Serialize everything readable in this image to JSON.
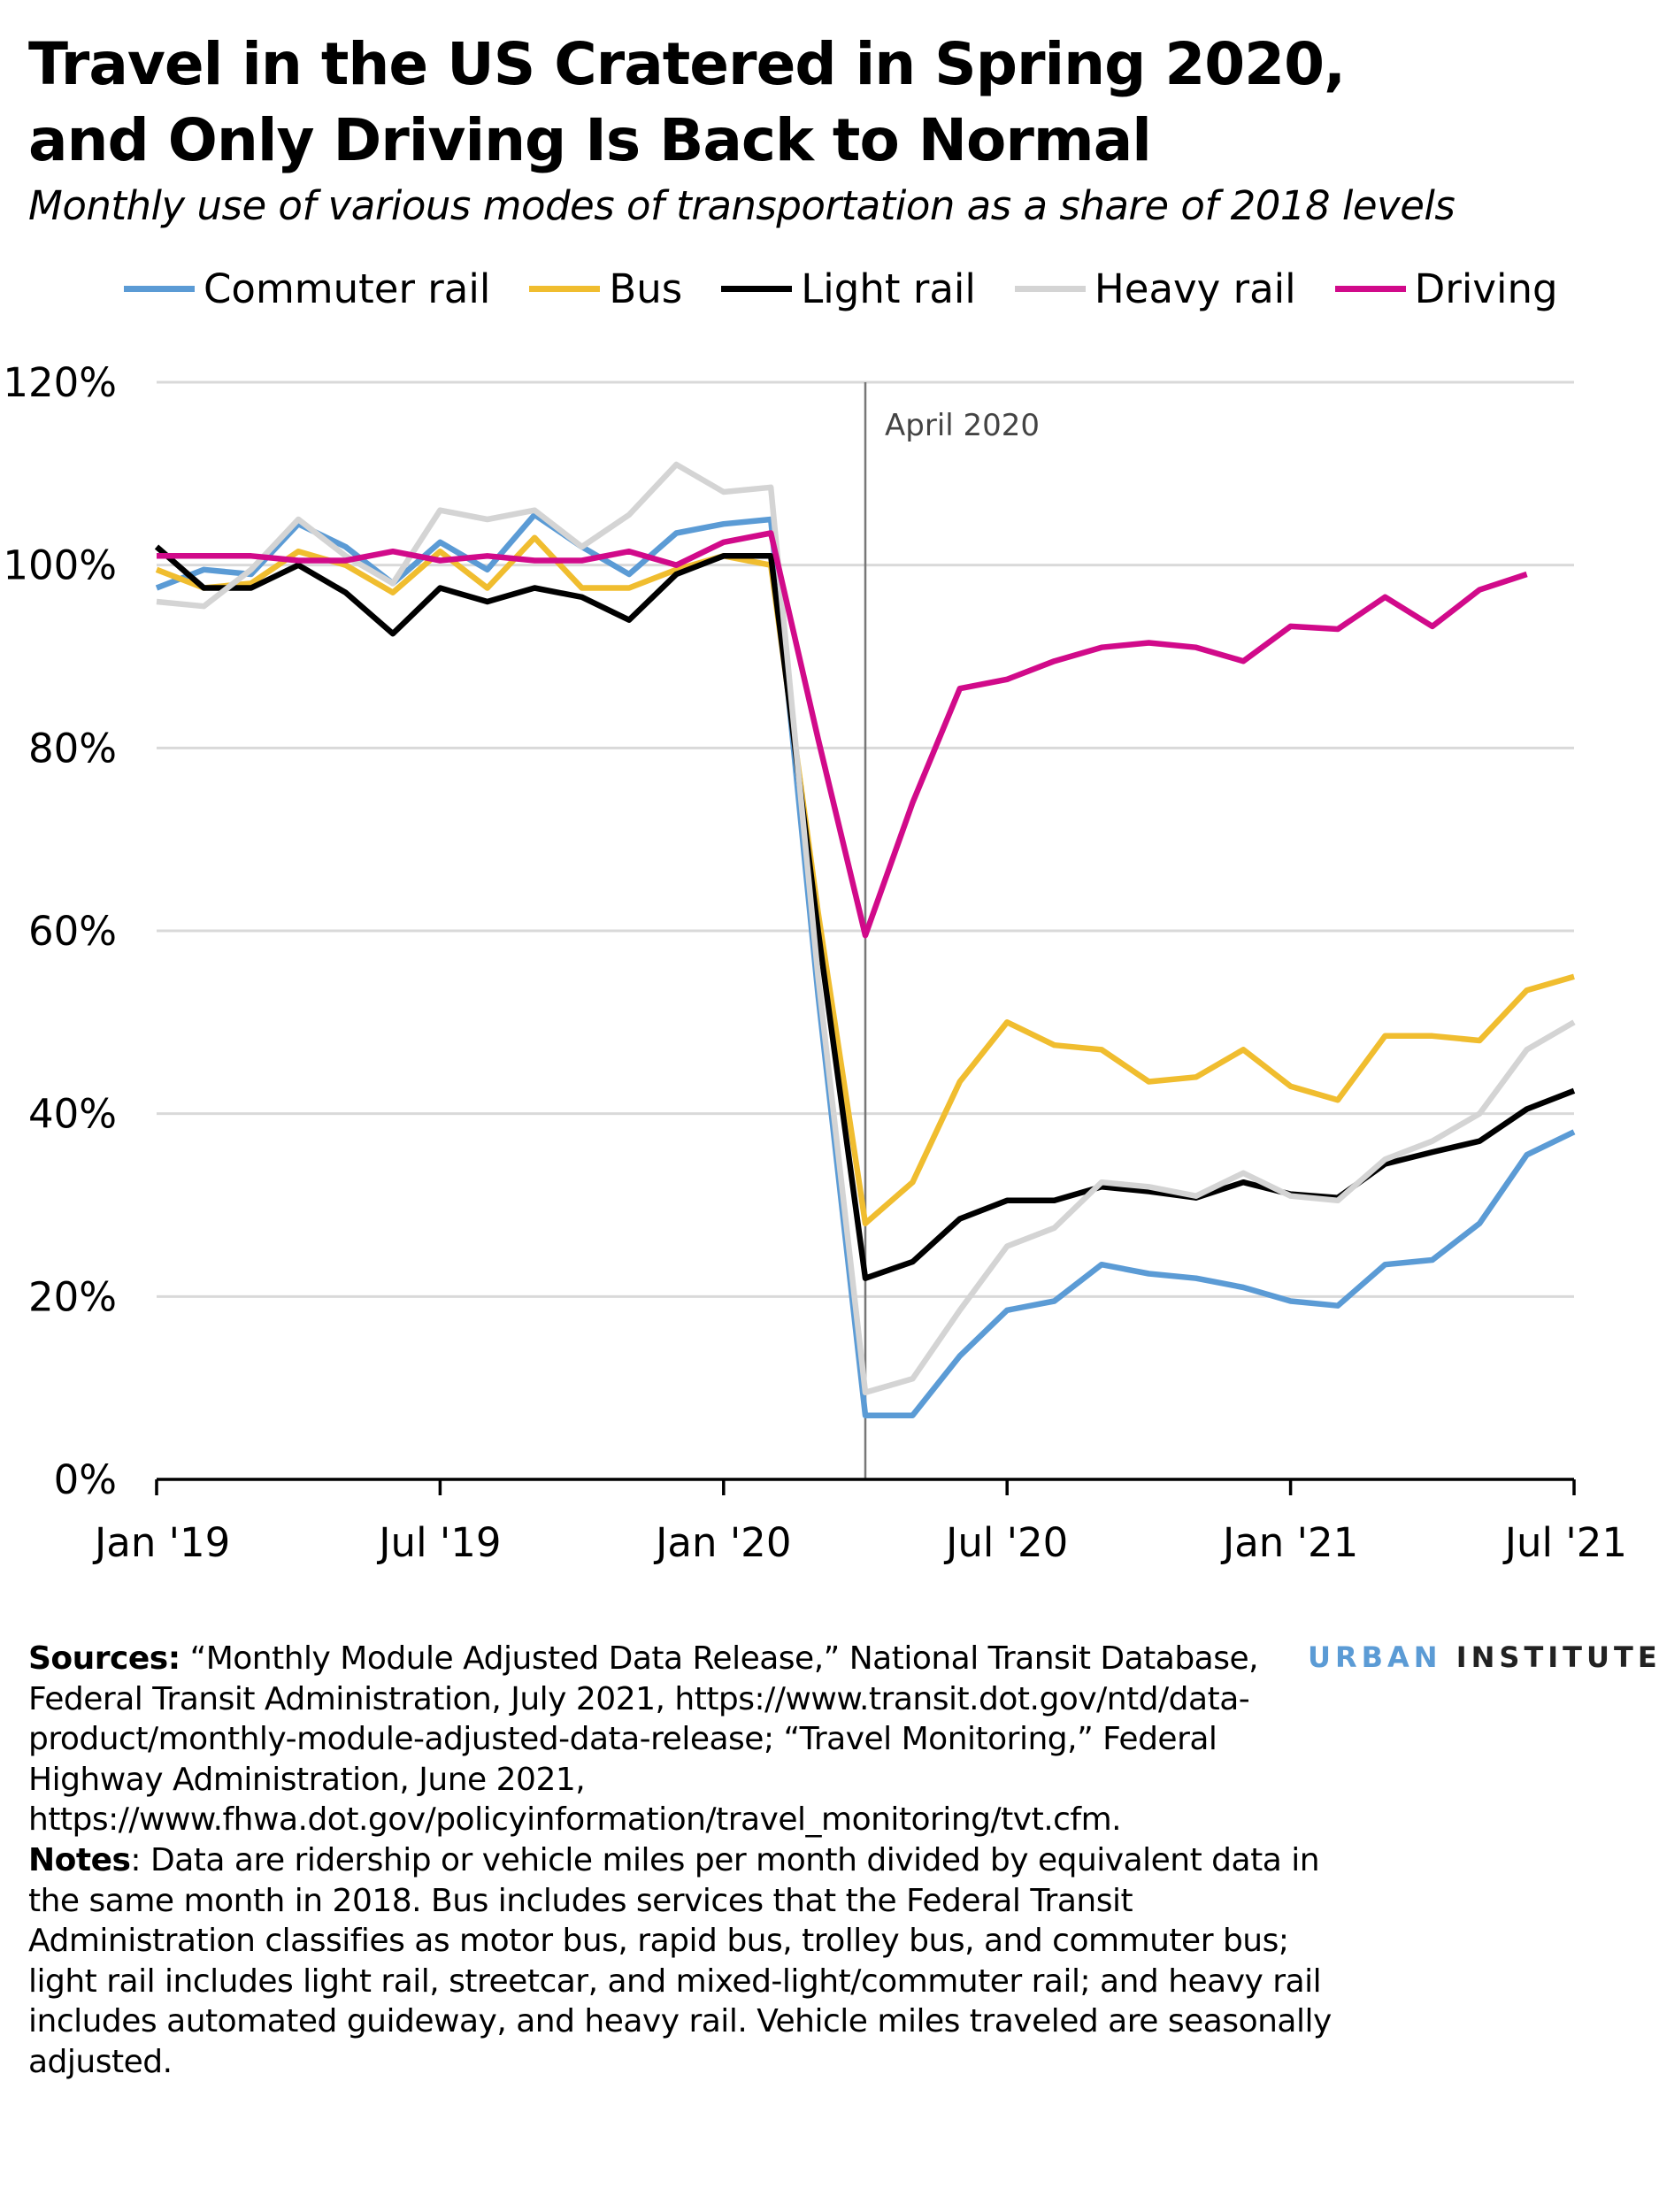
{
  "chart_data": {
    "type": "line",
    "title": "Travel in the US Cratered in Spring 2020, and Only Driving Is Back to Normal",
    "subtitle": "Monthly use of various modes of transportation as a share of 2018 levels",
    "categories": [
      "Jan '19",
      null,
      null,
      null,
      null,
      null,
      "Jul '19",
      null,
      null,
      null,
      null,
      null,
      "Jan '20",
      null,
      null,
      null,
      null,
      null,
      "Jul '20",
      null,
      null,
      null,
      null,
      null,
      "Jan '21",
      null,
      null,
      null,
      null,
      null,
      "Jul '21"
    ],
    "series": [
      {
        "name": "Commuter rail",
        "color": "#5b9bd5",
        "values": [
          97.5,
          99.5,
          99,
          104.5,
          102,
          98,
          102.5,
          99.5,
          105.5,
          102,
          99,
          103.5,
          104.5,
          105,
          53,
          7,
          7,
          13.5,
          18.5,
          19.5,
          23.5,
          22.5,
          22,
          21,
          19.5,
          19,
          23.5,
          24,
          28,
          35.5,
          38
        ]
      },
      {
        "name": "Bus",
        "color": "#f0bd2f",
        "values": [
          99.5,
          97.5,
          98,
          101.5,
          100,
          97,
          101.5,
          97.5,
          103,
          97.5,
          97.5,
          99.5,
          101,
          100,
          62,
          28,
          32.5,
          43.5,
          50,
          47.5,
          47,
          43.5,
          44,
          47,
          43,
          41.5,
          48.5,
          48.5,
          48,
          53.5,
          55
        ]
      },
      {
        "name": "Light rail",
        "color": "#000000",
        "values": [
          102,
          97.5,
          97.5,
          100,
          97,
          92.5,
          97.5,
          96,
          97.5,
          96.5,
          94,
          99,
          101,
          101,
          60,
          22,
          23.8,
          28.5,
          30.5,
          30.5,
          32,
          31.5,
          30.8,
          32.5,
          31.2,
          30.8,
          34.5,
          35.8,
          37,
          40.5,
          42.5
        ]
      },
      {
        "name": "Heavy rail",
        "color": "#d4d4d4",
        "values": [
          96,
          95.5,
          99.5,
          105,
          101,
          98,
          106,
          105,
          106,
          102,
          105.5,
          111,
          108,
          108.5,
          55,
          9.5,
          11,
          18.5,
          25.5,
          27.5,
          32.5,
          32,
          31,
          33.5,
          31,
          30.5,
          35,
          37,
          40,
          47,
          50
        ]
      },
      {
        "name": "Driving",
        "color": "#d10a8a",
        "values": [
          101,
          101,
          101,
          100.5,
          100.5,
          101.5,
          100.5,
          101,
          100.5,
          100.5,
          101.5,
          100,
          102.5,
          103.5,
          81,
          59.5,
          74,
          86.5,
          87.5,
          89.5,
          91,
          91.5,
          91,
          89.5,
          93.3,
          93,
          96.5,
          93.3,
          97.3,
          99,
          null
        ]
      }
    ],
    "ylim": [
      0,
      120
    ],
    "yticks": [
      {
        "value": 0,
        "label": "0%"
      },
      {
        "value": 20,
        "label": "20%"
      },
      {
        "value": 40,
        "label": "40%"
      },
      {
        "value": 60,
        "label": "60%"
      },
      {
        "value": 80,
        "label": "80%"
      },
      {
        "value": 100,
        "label": "100%"
      },
      {
        "value": 120,
        "label": "120%"
      }
    ],
    "grid": true,
    "annotations": [
      {
        "label": "April 2020",
        "index": 15
      }
    ],
    "sources": {
      "label": "Sources:",
      "text": " “Monthly Module Adjusted Data Release,” National Transit Database, Federal Transit Administration, July 2021, https://www.transit.dot.gov/ntd/data-product/monthly-module-adjusted-data-release; “Travel Monitoring,” Federal Highway Administration, June 2021, https://www.fhwa.dot.gov/policyinformation/travel_monitoring/tvt.cfm."
    },
    "notes": {
      "label": "Notes",
      "text": ": Data are ridership or vehicle miles per month divided by equivalent data in the same month in 2018. Bus includes services that the Federal Transit Administration classifies as motor bus, rapid bus, trolley bus, and commuter bus; light rail includes light rail, streetcar, and mixed-light/commuter rail; and heavy rail includes automated guideway, and heavy rail. Vehicle miles traveled are seasonally adjusted."
    },
    "logo": [
      "URBAN",
      "INSTITUTE"
    ]
  }
}
